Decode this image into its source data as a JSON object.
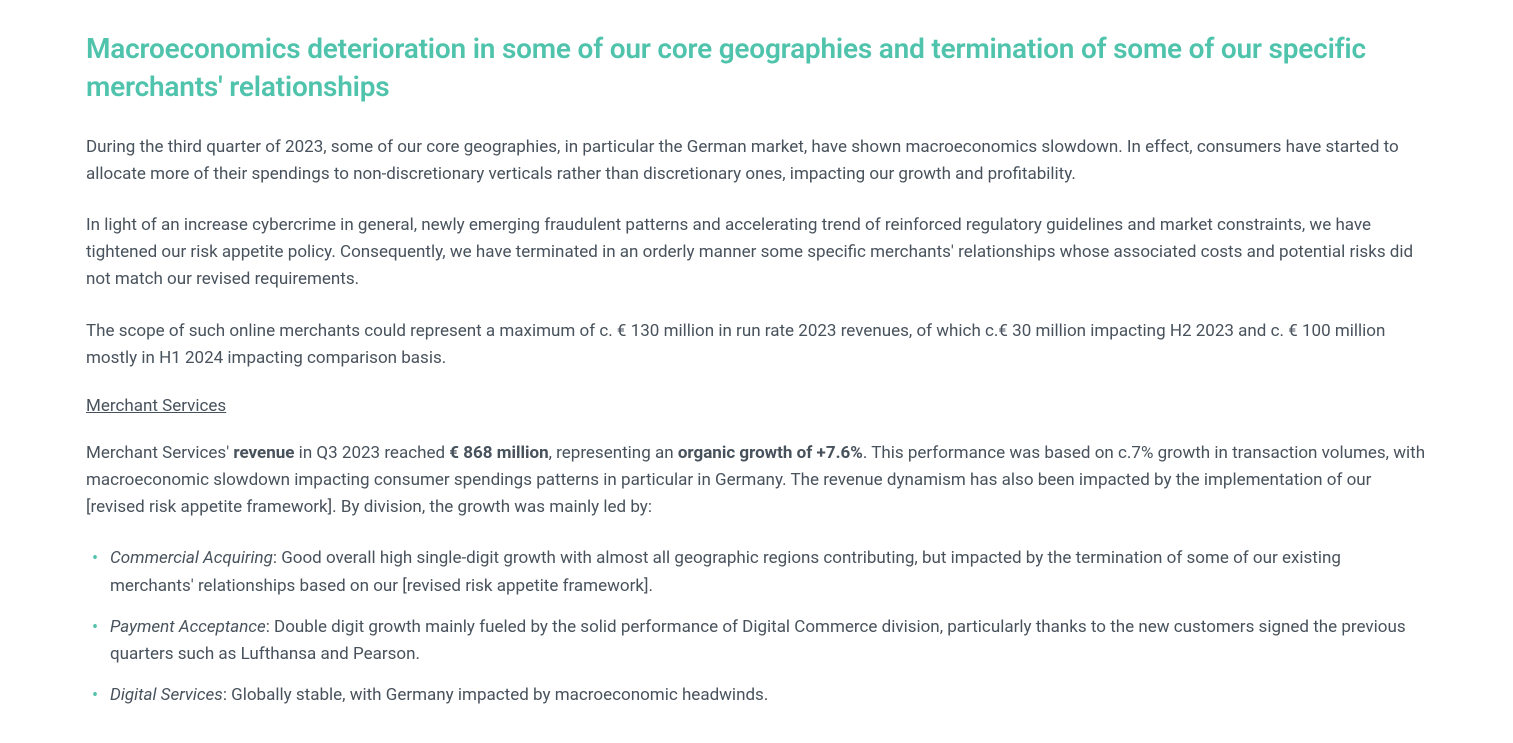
{
  "heading": "Macroeconomics deterioration in some of our core geographies and termination of some of our specific merchants' relationships",
  "paragraphs": {
    "p1": "During the third quarter of 2023, some of our core geographies, in particular the German market, have shown macroeconomics slowdown. In effect, consumers have started to allocate more of their spendings to non-discretionary verticals rather than discretionary ones, impacting our growth and profitability.",
    "p2": "In light of an increase cybercrime in general, newly emerging fraudulent patterns and accelerating trend of reinforced regulatory guidelines and market constraints, we have tightened our risk appetite policy. Consequently, we have terminated in an orderly manner some specific merchants' relationships whose associated costs and potential risks did not match our revised requirements.",
    "p3": "The scope of such  online merchants could represent a maximum of c. € 130 million in run rate 2023 revenues, of which c.€ 30 million impacting H2 2023 and c. € 100 million mostly in H1 2024 impacting comparison basis."
  },
  "subhead": "Merchant Services",
  "merchant_para": {
    "pre1": "Merchant Services' ",
    "bold1": "revenue",
    "mid1": " in Q3 2023 reached ",
    "bold2": "€ 868 million",
    "mid2": ", representing an ",
    "bold3": "organic growth of +7.6%",
    "post": ". This performance was based on c.7% growth in transaction volumes, with macroeconomic slowdown impacting consumer spendings patterns in particular in Germany. The revenue dynamism has also been impacted by the implementation of our [revised risk appetite framework]. By division, the growth was mainly led by:"
  },
  "bullets": [
    {
      "lead": "Commercial Acquiring",
      "text": ": Good overall high single-digit growth with almost all geographic regions contributing, but impacted by the termination  of some of our existing merchants' relationships based on our [revised risk appetite framework]."
    },
    {
      "lead": "Payment Acceptance",
      "text": ": Double digit growth mainly fueled by the solid performance of Digital Commerce division, particularly thanks to the new customers signed the previous quarters such as Lufthansa and Pearson."
    },
    {
      "lead": "Digital Services",
      "text": ": Globally stable, with Germany impacted by macroeconomic headwinds."
    }
  ],
  "colors": {
    "heading": "#4fc3ab",
    "body": "#48525c",
    "bullet": "#4fc3ab",
    "background": "#ffffff"
  },
  "typography": {
    "heading_fontsize": 28,
    "body_fontsize": 17,
    "heading_weight": 600,
    "bold_weight": 700
  }
}
